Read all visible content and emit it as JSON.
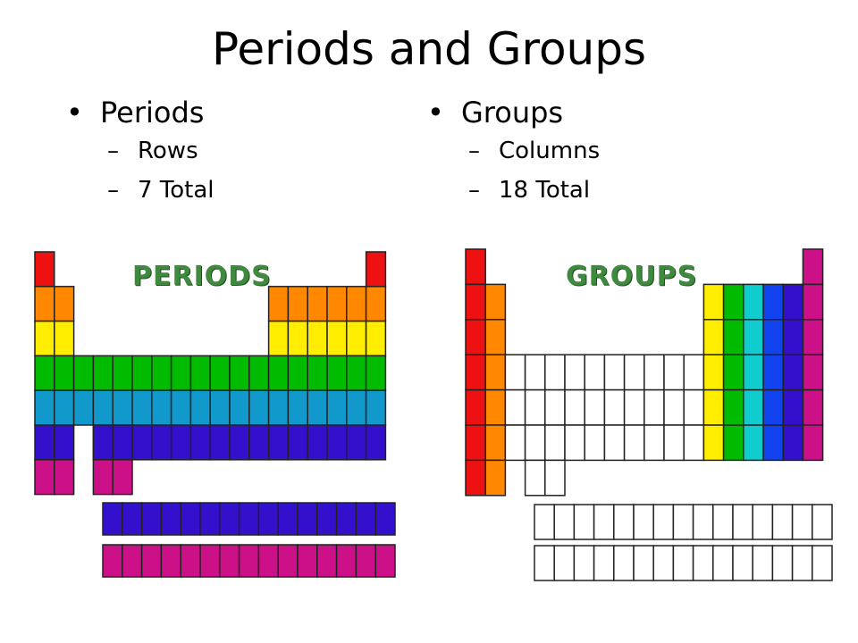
{
  "title": "Periods and Groups",
  "left": {
    "heading": "Periods",
    "items": [
      "Rows",
      "7 Total"
    ],
    "art_label": "PERIODS",
    "row_colors": [
      "#ee1111",
      "#ff8800",
      "#ffee00",
      "#00bb00",
      "#1199cc",
      "#3311cc",
      "#cc1188"
    ]
  },
  "right": {
    "heading": "Groups",
    "items": [
      "Columns",
      "18 Total"
    ],
    "art_label": "GROUPS",
    "group_colors": {
      "1": "#ee1111",
      "2": "#ff8800",
      "13": "#ffee00",
      "14": "#00bb00",
      "15": "#11cccc",
      "16": "#1144ee",
      "17": "#3311cc",
      "18": "#cc1188"
    },
    "blank_color": "#ffffff"
  }
}
